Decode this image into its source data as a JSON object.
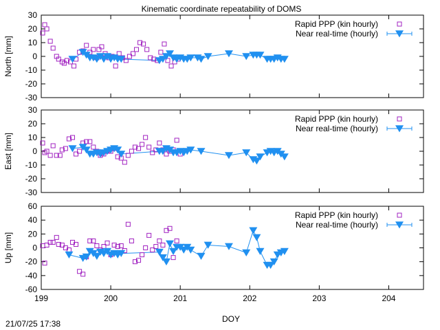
{
  "title": "Kinematic coordinate repeatability of DOMS",
  "timestamp": "21/07/25 17:38",
  "xlabel": "DOY",
  "colors": {
    "ppp": "#a020c0",
    "nrt": "#2090f0",
    "frame": "#000000"
  },
  "chart_data": [
    {
      "type": "scatter",
      "title": "Kinematic coordinate repeatability of DOMS",
      "ylabel": "North [mm]",
      "xlim": [
        199,
        204.5
      ],
      "ylim": [
        -30,
        30
      ],
      "xticks": [
        "199",
        "200",
        "201",
        "202",
        "203",
        "204"
      ],
      "yticks": [
        "-30",
        "-20",
        "-10",
        "0",
        "10",
        "20",
        "30"
      ],
      "grid": false,
      "legend_position": "top-right",
      "series": [
        {
          "name": "Rapid PPP (kin hourly)",
          "marker": "open-square",
          "x": [
            199.02,
            199.05,
            199.08,
            199.13,
            199.17,
            199.22,
            199.25,
            199.3,
            199.33,
            199.37,
            199.42,
            199.47,
            199.5,
            199.55,
            199.6,
            199.65,
            199.7,
            199.75,
            199.8,
            199.83,
            199.87,
            199.92,
            199.97,
            200.02,
            200.07,
            200.12,
            200.17,
            200.22,
            200.27,
            200.32,
            200.37,
            200.42,
            200.47,
            200.52,
            200.57,
            200.62,
            200.67,
            200.72,
            200.77,
            200.82,
            200.87,
            200.92,
            200.97
          ],
          "y": [
            17,
            23,
            20,
            11,
            6,
            0,
            -2,
            -4,
            -5,
            -3,
            -4,
            -7,
            -2,
            3,
            4,
            8,
            3,
            5,
            -1,
            5,
            7,
            2,
            -1,
            0,
            -7,
            2,
            -1,
            -3,
            0,
            2,
            5,
            10,
            9,
            5,
            -1,
            -2,
            -3,
            3,
            9,
            -3,
            -7,
            -4,
            -2
          ]
        },
        {
          "name": "Near real-time (hourly)",
          "marker": "filled-triangle-down-with-line",
          "x": [
            199.45,
            199.6,
            199.65,
            199.7,
            199.75,
            199.8,
            199.85,
            199.9,
            199.95,
            200.0,
            200.05,
            200.1,
            200.15,
            200.7,
            200.75,
            200.8,
            200.85,
            200.9,
            200.95,
            201.0,
            201.05,
            201.1,
            201.15,
            201.25,
            201.3,
            201.4,
            201.7,
            201.95,
            202.05,
            202.1,
            202.15,
            202.25,
            202.3,
            202.35,
            202.4,
            202.45,
            202.5
          ],
          "y": [
            -2,
            3,
            1,
            -1,
            -1,
            -2,
            0,
            -2,
            0,
            -2,
            -1,
            -2,
            -2,
            -3,
            -2,
            0,
            2,
            -1,
            -2,
            -1,
            -2,
            -2,
            -1,
            -1,
            -2,
            0,
            2,
            0,
            1,
            1,
            1,
            -2,
            -2,
            -2,
            -1,
            -2,
            -2
          ]
        }
      ]
    },
    {
      "type": "scatter",
      "ylabel": "East [mm]",
      "xlim": [
        199,
        204.5
      ],
      "ylim": [
        -30,
        30
      ],
      "xticks": [
        "199",
        "200",
        "201",
        "202",
        "203",
        "204"
      ],
      "yticks": [
        "-30",
        "-20",
        "-10",
        "0",
        "10",
        "20",
        "30"
      ],
      "grid": false,
      "legend_position": "top-right",
      "series": [
        {
          "name": "Rapid PPP (kin hourly)",
          "marker": "open-square",
          "x": [
            199.02,
            199.05,
            199.08,
            199.13,
            199.17,
            199.22,
            199.27,
            199.3,
            199.35,
            199.4,
            199.45,
            199.5,
            199.55,
            199.6,
            199.65,
            199.7,
            199.75,
            199.8,
            199.85,
            199.9,
            199.95,
            200.0,
            200.05,
            200.1,
            200.15,
            200.2,
            200.25,
            200.3,
            200.35,
            200.4,
            200.45,
            200.5,
            200.55,
            200.6,
            200.65,
            200.7,
            200.75,
            200.8,
            200.85,
            200.9,
            200.95,
            201.0
          ],
          "y": [
            6,
            -1,
            0,
            -3,
            4,
            -3,
            -3,
            1,
            2,
            9,
            10,
            -2,
            0,
            6,
            7,
            7,
            3,
            0,
            -3,
            -2,
            0,
            0,
            2,
            -4,
            -5,
            -8,
            -3,
            0,
            3,
            2,
            5,
            10,
            3,
            -1,
            1,
            6,
            1,
            -2,
            0,
            1,
            8,
            -2
          ]
        },
        {
          "name": "Near real-time (hourly)",
          "marker": "filled-triangle-down-with-line",
          "x": [
            199.45,
            199.6,
            199.65,
            199.7,
            199.75,
            199.8,
            199.85,
            199.9,
            199.95,
            200.0,
            200.05,
            200.1,
            200.15,
            200.7,
            200.75,
            200.8,
            200.85,
            200.9,
            200.95,
            201.0,
            201.05,
            201.1,
            201.15,
            201.3,
            201.7,
            201.95,
            202.05,
            202.1,
            202.15,
            202.25,
            202.3,
            202.35,
            202.4,
            202.45,
            202.5
          ],
          "y": [
            2,
            3,
            1,
            -2,
            -2,
            -1,
            -2,
            -1,
            0,
            1,
            2,
            1,
            -2,
            0,
            0,
            2,
            1,
            -1,
            -1,
            0,
            -1,
            0,
            1,
            0,
            -3,
            -1,
            -6,
            -7,
            -4,
            -1,
            0,
            -1,
            0,
            -2,
            -4
          ]
        }
      ]
    },
    {
      "type": "scatter",
      "ylabel": "Up [mm]",
      "xlim": [
        199,
        204.5
      ],
      "ylim": [
        -60,
        60
      ],
      "xticks": [
        "199",
        "200",
        "201",
        "202",
        "203",
        "204"
      ],
      "yticks": [
        "-60",
        "-40",
        "-20",
        "0",
        "20",
        "40",
        "60"
      ],
      "grid": false,
      "legend_position": "top-right",
      "series": [
        {
          "name": "Rapid PPP (kin hourly)",
          "marker": "open-square",
          "x": [
            199.02,
            199.05,
            199.08,
            199.13,
            199.17,
            199.22,
            199.25,
            199.3,
            199.35,
            199.4,
            199.45,
            199.5,
            199.55,
            199.6,
            199.65,
            199.7,
            199.75,
            199.8,
            199.85,
            199.9,
            199.95,
            200.0,
            200.05,
            200.1,
            200.15,
            200.2,
            200.25,
            200.3,
            200.35,
            200.4,
            200.45,
            200.5,
            200.55,
            200.6,
            200.65,
            200.7,
            200.75,
            200.8,
            200.85,
            200.9,
            200.95
          ],
          "y": [
            3,
            -22,
            4,
            8,
            8,
            15,
            5,
            4,
            0,
            -3,
            8,
            5,
            -34,
            -38,
            -13,
            10,
            10,
            3,
            -3,
            2,
            7,
            -10,
            4,
            2,
            3,
            -4,
            34,
            10,
            -20,
            -18,
            -10,
            0,
            18,
            -3,
            2,
            10,
            4,
            25,
            28,
            -14,
            10
          ]
        },
        {
          "name": "Near real-time (hourly)",
          "marker": "filled-triangle-down-with-line",
          "x": [
            199.4,
            199.6,
            199.65,
            199.7,
            199.75,
            199.8,
            199.85,
            199.9,
            199.95,
            200.0,
            200.05,
            200.1,
            200.15,
            200.7,
            200.75,
            200.8,
            200.85,
            200.9,
            200.95,
            201.0,
            201.05,
            201.1,
            201.15,
            201.3,
            201.4,
            201.7,
            201.95,
            202.05,
            202.1,
            202.15,
            202.25,
            202.3,
            202.35,
            202.4,
            202.45,
            202.5
          ],
          "y": [
            -10,
            -15,
            -13,
            -5,
            -8,
            -12,
            -6,
            -8,
            -5,
            -10,
            -8,
            -10,
            -8,
            -6,
            -14,
            -20,
            6,
            -5,
            1,
            1,
            -3,
            1,
            -3,
            -12,
            4,
            2,
            -7,
            25,
            15,
            -5,
            -25,
            -25,
            -20,
            -10,
            -7,
            -5
          ]
        }
      ]
    }
  ]
}
